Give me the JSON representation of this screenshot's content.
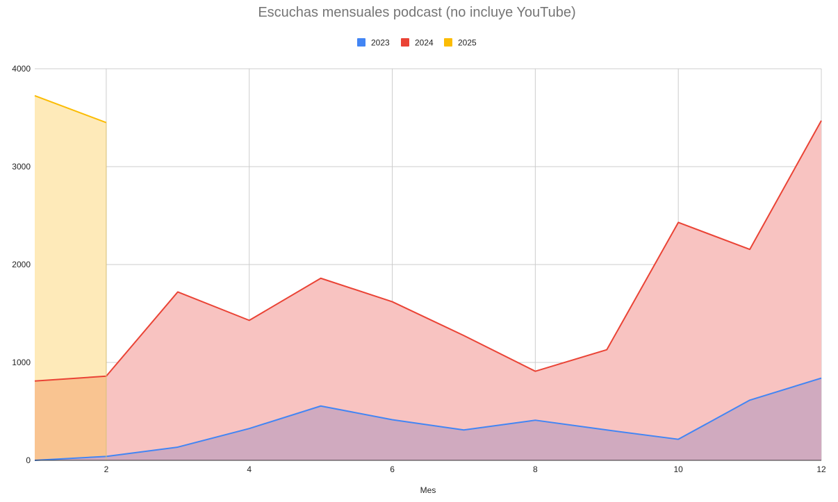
{
  "chart_data": {
    "type": "area",
    "title": "Escuchas mensuales podcast (no incluye YouTube)",
    "xlabel": "Mes",
    "ylabel": "",
    "xlim": [
      1,
      12
    ],
    "ylim": [
      0,
      4000
    ],
    "x_ticks": [
      "2",
      "4",
      "6",
      "8",
      "10",
      "12"
    ],
    "y_ticks": [
      "0",
      "1000",
      "2000",
      "3000",
      "4000"
    ],
    "grid": true,
    "legend_position": "top",
    "series": [
      {
        "name": "2023",
        "color": "#4285f4",
        "fill": "#d0aabf",
        "x": [
          1,
          2,
          3,
          4,
          5,
          6,
          7,
          8,
          9,
          10,
          11,
          12
        ],
        "values": [
          0,
          40,
          135,
          325,
          555,
          415,
          310,
          410,
          310,
          215,
          615,
          840
        ]
      },
      {
        "name": "2024",
        "color": "#ea4335",
        "fill": "#f8c3c1",
        "x": [
          1,
          2,
          3,
          4,
          5,
          6,
          7,
          8,
          9,
          10,
          11,
          12
        ],
        "values": [
          810,
          860,
          1720,
          1430,
          1860,
          1620,
          1275,
          910,
          1130,
          2430,
          2155,
          3470
        ]
      },
      {
        "name": "2025",
        "color": "#fbbc04",
        "fill": "#feeab9",
        "x": [
          1,
          2
        ],
        "values": [
          3725,
          3450
        ]
      }
    ],
    "overlap_fill": "#f9c491"
  }
}
